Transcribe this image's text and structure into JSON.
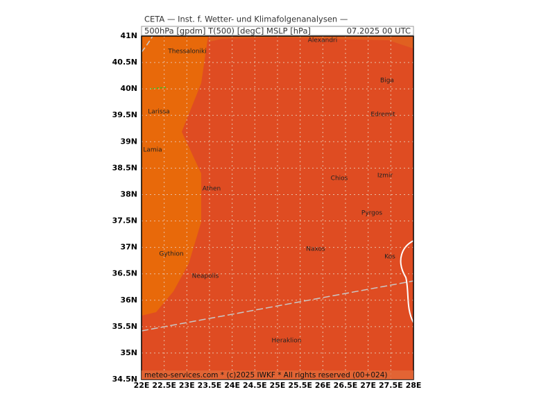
{
  "header": {
    "line1": "CETA — Inst. f. Wetter- und Klimafolgenanalysen —",
    "line2": "500hPa [gpdm] T(500) [degC] MSLP [hPa]",
    "time": "07.2025 00 UTC"
  },
  "footer": "meteo-services.com * (c)2025 IWKF * All rights reserved (00+024)",
  "map": {
    "xlim": [
      22,
      28
    ],
    "ylim": [
      34.5,
      41
    ],
    "xticks": [
      {
        "value": 22,
        "label": "22E"
      },
      {
        "value": 22.5,
        "label": "22.5E"
      },
      {
        "value": 23,
        "label": "23E"
      },
      {
        "value": 23.5,
        "label": "23.5E"
      },
      {
        "value": 24,
        "label": "24E"
      },
      {
        "value": 24.5,
        "label": "24.5E"
      },
      {
        "value": 25,
        "label": "25E"
      },
      {
        "value": 25.5,
        "label": "25.5E"
      },
      {
        "value": 26,
        "label": "26E"
      },
      {
        "value": 26.5,
        "label": "26.5E"
      },
      {
        "value": 27,
        "label": "27E"
      },
      {
        "value": 27.5,
        "label": "27.5E"
      },
      {
        "value": 28,
        "label": "28E"
      }
    ],
    "yticks": [
      {
        "value": 34.5,
        "label": "34.5N"
      },
      {
        "value": 35,
        "label": "35N"
      },
      {
        "value": 35.5,
        "label": "35.5N"
      },
      {
        "value": 36,
        "label": "36N"
      },
      {
        "value": 36.5,
        "label": "36.5N"
      },
      {
        "value": 37,
        "label": "37N"
      },
      {
        "value": 37.5,
        "label": "37.5N"
      },
      {
        "value": 38,
        "label": "38N"
      },
      {
        "value": 38.5,
        "label": "38.5N"
      },
      {
        "value": 39,
        "label": "39N"
      },
      {
        "value": 39.5,
        "label": "39.5N"
      },
      {
        "value": 40,
        "label": "40N"
      },
      {
        "value": 40.5,
        "label": "40.5N"
      },
      {
        "value": 41,
        "label": "41N"
      }
    ],
    "places": [
      "Alexandri",
      "Thessaloniki",
      "Biga",
      "Larissa",
      "Edremit",
      "Lamia",
      "Izmir",
      "Chios",
      "Athen",
      "Pyrgos",
      "Naxos",
      "Gythion",
      "Kos",
      "Neapolis",
      "Heraklion"
    ]
  }
}
